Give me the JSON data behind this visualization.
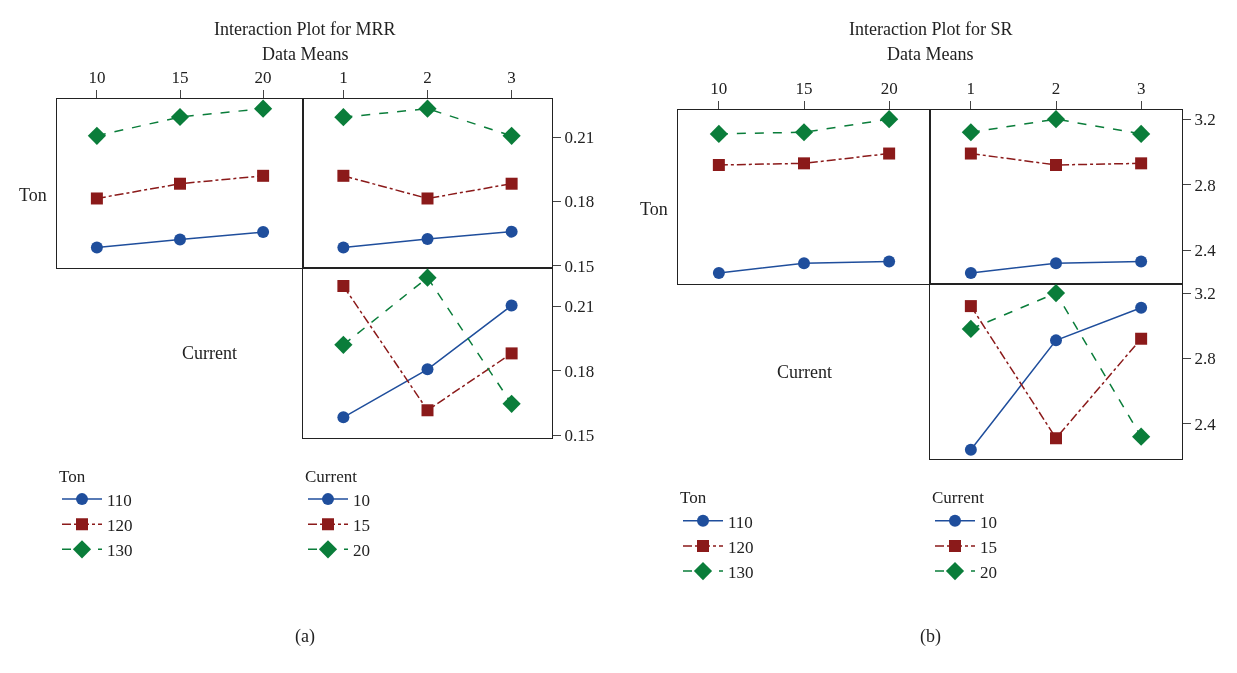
{
  "chart_data": [
    {
      "type": "line",
      "ylabel": "Ton",
      "legend_title": "Ton",
      "legend": "bottom",
      "categories": [
        "10",
        "15",
        "20"
      ],
      "ylim": [
        0.149,
        0.228
      ],
      "yticks": [
        0.15,
        0.18,
        0.21
      ],
      "tick_labels": "x",
      "grid": false,
      "series": [
        {
          "name": "110",
          "color": "#1f4e9c",
          "marker": "circle",
          "line_style": "solid",
          "values": [
            0.1585,
            0.1622,
            0.1657
          ]
        },
        {
          "name": "120",
          "color": "#8b1a1a",
          "marker": "square",
          "line_style": "dashdot",
          "values": [
            0.1814,
            0.1883,
            0.192
          ]
        },
        {
          "name": "130",
          "color": "#0a7d3a",
          "marker": "diamond",
          "line_style": "dashed",
          "values": [
            0.2107,
            0.2195,
            0.2234
          ]
        }
      ]
    },
    {
      "type": "line",
      "title": "Interaction Plot for MRR",
      "subtitle": "Data Means",
      "annotations": [
        "(a)"
      ],
      "categories": [
        "1",
        "2",
        "3"
      ],
      "ylim": [
        0.149,
        0.228
      ],
      "yticks": [
        0.15,
        0.18,
        0.21
      ],
      "grid": false,
      "series": [
        {
          "color": "#1f4e9c",
          "marker": "circle",
          "line_style": "solid",
          "values": [
            0.1585,
            0.1625,
            0.1659
          ]
        },
        {
          "color": "#8b1a1a",
          "marker": "square",
          "line_style": "dashdot",
          "values": [
            0.192,
            0.1814,
            0.1883
          ]
        },
        {
          "color": "#0a7d3a",
          "marker": "diamond",
          "line_style": "dashed",
          "values": [
            0.2194,
            0.2234,
            0.2107
          ]
        }
      ]
    },
    {
      "type": "line",
      "ylabel": "Current",
      "legend_title": "Current",
      "legend": "bottom",
      "categories": [
        "1",
        "2",
        "3"
      ],
      "ylim": [
        0.1488,
        0.228
      ],
      "yticks": [
        0.15,
        0.18,
        0.21
      ],
      "tick_labels": "y",
      "grid": false,
      "series": [
        {
          "name": "10",
          "color": "#1f4e9c",
          "marker": "circle",
          "line_style": "solid",
          "values": [
            0.1583,
            0.1807,
            0.2104
          ]
        },
        {
          "name": "15",
          "color": "#8b1a1a",
          "marker": "square",
          "line_style": "dashdot",
          "values": [
            0.2195,
            0.1616,
            0.1881
          ]
        },
        {
          "name": "20",
          "color": "#0a7d3a",
          "marker": "diamond",
          "line_style": "dashed",
          "values": [
            0.1921,
            0.2234,
            0.1646
          ]
        }
      ]
    },
    {
      "type": "line",
      "ylabel": "Ton",
      "legend_title": "Ton",
      "legend": "bottom",
      "categories": [
        "10",
        "15",
        "20"
      ],
      "ylim": [
        2.195,
        3.258
      ],
      "yticks": [
        2.4,
        2.8,
        3.2
      ],
      "tick_labels": "x",
      "grid": false,
      "series": [
        {
          "name": "110",
          "color": "#1f4e9c",
          "marker": "circle",
          "line_style": "solid",
          "values": [
            2.26,
            2.32,
            2.33
          ]
        },
        {
          "name": "120",
          "color": "#8b1a1a",
          "marker": "square",
          "line_style": "dashdot",
          "values": [
            2.92,
            2.93,
            2.99
          ]
        },
        {
          "name": "130",
          "color": "#0a7d3a",
          "marker": "diamond",
          "line_style": "dashed",
          "values": [
            3.11,
            3.12,
            3.2
          ]
        }
      ]
    },
    {
      "type": "line",
      "title": "Interaction Plot for SR",
      "subtitle": "Data Means",
      "annotations": [
        "(b)"
      ],
      "categories": [
        "1",
        "2",
        "3"
      ],
      "ylim": [
        2.195,
        3.258
      ],
      "yticks": [
        2.4,
        2.8,
        3.2
      ],
      "grid": false,
      "series": [
        {
          "color": "#1f4e9c",
          "marker": "circle",
          "line_style": "solid",
          "values": [
            2.26,
            2.32,
            2.33
          ]
        },
        {
          "color": "#8b1a1a",
          "marker": "square",
          "line_style": "dashdot",
          "values": [
            2.99,
            2.92,
            2.93
          ]
        },
        {
          "color": "#0a7d3a",
          "marker": "diamond",
          "line_style": "dashed",
          "values": [
            3.12,
            3.2,
            3.11
          ]
        }
      ]
    },
    {
      "type": "line",
      "ylabel": "Current",
      "legend_title": "Current",
      "legend": "bottom",
      "categories": [
        "1",
        "2",
        "3"
      ],
      "ylim": [
        2.18,
        3.258
      ],
      "yticks": [
        2.4,
        2.8,
        3.2
      ],
      "tick_labels": "y",
      "grid": false,
      "series": [
        {
          "name": "10",
          "color": "#1f4e9c",
          "marker": "circle",
          "line_style": "solid",
          "values": [
            2.24,
            2.91,
            3.11
          ]
        },
        {
          "name": "15",
          "color": "#8b1a1a",
          "marker": "square",
          "line_style": "dashdot",
          "values": [
            3.12,
            2.31,
            2.92
          ]
        },
        {
          "name": "20",
          "color": "#0a7d3a",
          "marker": "diamond",
          "line_style": "dashed",
          "values": [
            2.98,
            3.2,
            2.32
          ]
        }
      ]
    }
  ]
}
